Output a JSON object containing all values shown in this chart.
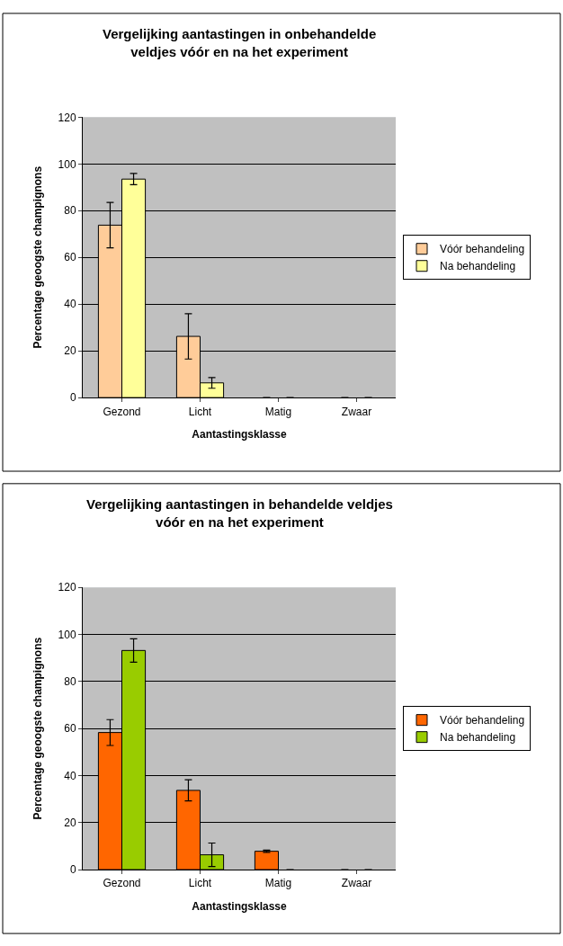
{
  "chart_data": [
    {
      "type": "bar",
      "title": "Vergelijking aantastingen in onbehandelde\nveldjes vóór en na het experiment",
      "xlabel": "Aantastingsklasse",
      "ylabel": "Percentage geoogste champignons",
      "categories": [
        "Gezond",
        "Licht",
        "Matig",
        "Zwaar"
      ],
      "series": [
        {
          "name": "Vóór behandeling",
          "color": "#ffcc99",
          "values": [
            73.8,
            26.2,
            0,
            0
          ],
          "errors": [
            9.7,
            9.7,
            null,
            null
          ]
        },
        {
          "name": "Na behandeling",
          "color": "#ffff99",
          "values": [
            93.5,
            6.3,
            0,
            0
          ],
          "errors": [
            2.4,
            2.3,
            null,
            null
          ]
        }
      ],
      "ylim": [
        0,
        120
      ],
      "yticks": [
        0,
        20,
        40,
        60,
        80,
        100,
        120
      ],
      "grid": "y",
      "legend": "right"
    },
    {
      "type": "bar",
      "title": "Vergelijking aantastingen in behandelde veldjes\nvóór en na het experiment",
      "xlabel": "Aantastingsklasse",
      "ylabel": "Percentage geoogste champignons",
      "categories": [
        "Gezond",
        "Licht",
        "Matig",
        "Zwaar"
      ],
      "series": [
        {
          "name": "Vóór behandeling",
          "color": "#ff6600",
          "values": [
            58.3,
            33.7,
            7.8,
            0
          ],
          "errors": [
            5.5,
            4.5,
            0.5,
            null
          ]
        },
        {
          "name": "Na behandeling",
          "color": "#99cc00",
          "values": [
            93.2,
            6.3,
            0,
            0
          ],
          "errors": [
            5,
            5,
            null,
            null
          ]
        }
      ],
      "ylim": [
        0,
        120
      ],
      "yticks": [
        0,
        20,
        40,
        60,
        80,
        100,
        120
      ],
      "grid": "y",
      "legend": "right"
    }
  ]
}
